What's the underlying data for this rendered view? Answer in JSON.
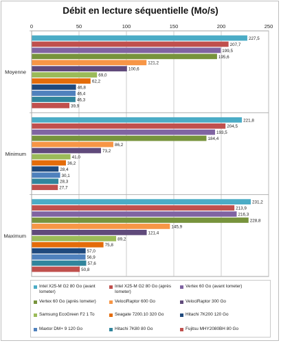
{
  "chart_data": {
    "type": "bar",
    "orientation": "horizontal",
    "title": "Débit en lecture séquentielle (Mo/s)",
    "categories": [
      "Moyenne",
      "Minimum",
      "Maximum"
    ],
    "xlim": [
      0,
      250
    ],
    "x_ticks": [
      0,
      50,
      100,
      150,
      200,
      250
    ],
    "grid": true,
    "legend_position": "bottom",
    "series": [
      {
        "name": "Intel X25-M G2 80 Go (avant Iometer)",
        "color": "#4bacc6",
        "values": [
          227.5,
          221.8,
          231.2
        ]
      },
      {
        "name": "Intel X25-M G2 80 Go (après Iometer)",
        "color": "#c0504d",
        "values": [
          207.7,
          204.5,
          213.9
        ]
      },
      {
        "name": "Vertex 60 Go (avant Iometer)",
        "color": "#8064a2",
        "values": [
          199.5,
          193.5,
          216.3
        ]
      },
      {
        "name": "Vertex 60 Go (après Iometer)",
        "color": "#77933c",
        "values": [
          195.6,
          184.4,
          228.8
        ]
      },
      {
        "name": "VelociRaptor 600 Go",
        "color": "#f79646",
        "values": [
          121.2,
          86.2,
          145.9
        ]
      },
      {
        "name": "VelociRaptor 300 Go",
        "color": "#604a7b",
        "values": [
          100.6,
          73.2,
          121.4
        ]
      },
      {
        "name": "Samsung EcoGreen F2 1 To",
        "color": "#9bbb59",
        "values": [
          69.0,
          41.0,
          89.2
        ]
      },
      {
        "name": "Seagate 7200.10 320 Go",
        "color": "#e46c0a",
        "values": [
          62.2,
          36.2,
          75.8
        ]
      },
      {
        "name": "Hitachi 7K200 120 Go",
        "color": "#1f497d",
        "values": [
          46.8,
          28.4,
          57.0
        ]
      },
      {
        "name": "Maxtor DM+ 9 120 Go",
        "color": "#4f81bd",
        "values": [
          46.4,
          30.1,
          56.9
        ]
      },
      {
        "name": "Hitachi 7K80 80 Go",
        "color": "#31859c",
        "values": [
          46.3,
          28.3,
          57.6
        ]
      },
      {
        "name": "Fujitsu MHY2080BH 80 Go",
        "color": "#c0504d",
        "values": [
          39.9,
          27.7,
          50.8
        ]
      }
    ],
    "value_labels": [
      [
        "227,5",
        "221,8",
        "231,2"
      ],
      [
        "207,7",
        "204,5",
        "213,9"
      ],
      [
        "199,5",
        "193,5",
        "216,3"
      ],
      [
        "195,6",
        "184,4",
        "228,8"
      ],
      [
        "121,2",
        "86,2",
        "145,9"
      ],
      [
        "100,6",
        "73,2",
        "121,4"
      ],
      [
        "69,0",
        "41,0",
        "89,2"
      ],
      [
        "62,2",
        "36,2",
        "75,8"
      ],
      [
        "46,8",
        "28,4",
        "57,0"
      ],
      [
        "46,4",
        "30,1",
        "56,9"
      ],
      [
        "46,3",
        "28,3",
        "57,6"
      ],
      [
        "39,9",
        "27,7",
        "50,8"
      ]
    ]
  },
  "legend": {
    "items": [
      "Intel X25-M G2 80 Go (avant Iometer)",
      "Intel X25-M G2 80 Go (après Iometer)",
      "Vertex 60 Go (avant Iometer)",
      "Vertex 60 Go (après Iometer)",
      "VelociRaptor 600 Go",
      "VelociRaptor 300 Go",
      "Samsung EcoGreen F2 1 To",
      "Seagate 7200.10 320 Go",
      "Hitachi 7K200 120 Go",
      "Maxtor DM+ 9 120 Go",
      "Hitachi 7K80 80 Go",
      "Fujitsu MHY2080BH 80 Go"
    ]
  }
}
